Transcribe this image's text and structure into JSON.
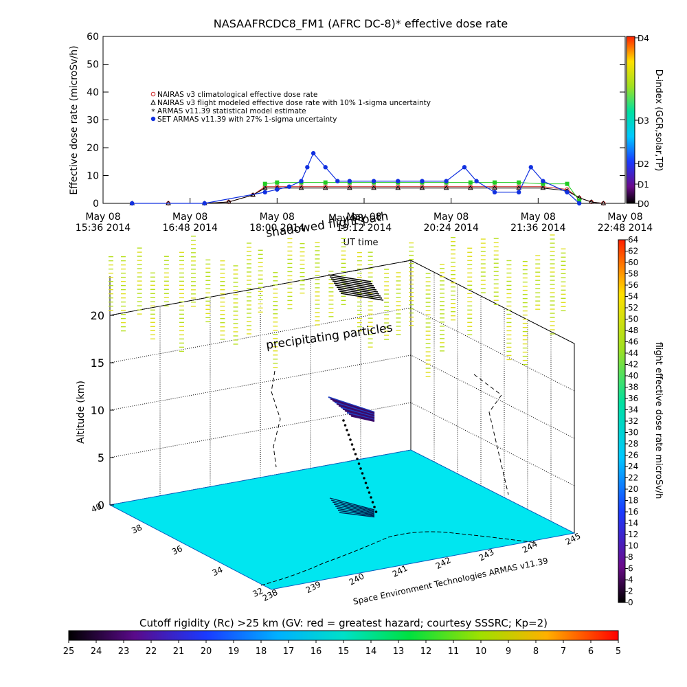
{
  "top_chart": {
    "title": "NASAAFRCDC8_FM1 (AFRC DC-8)* effective dose rate",
    "ylabel": "Effective dose rate (microSv/h)",
    "xlabel": "UT time",
    "yticks": [
      "0",
      "10",
      "20",
      "30",
      "40",
      "50",
      "60"
    ],
    "xticks": [
      {
        "line1": "May 08",
        "line2": "15:36 2014"
      },
      {
        "line1": "May 08",
        "line2": "16:48 2014"
      },
      {
        "line1": "May 08",
        "line2": "18:00 2014"
      },
      {
        "line1": "May 08",
        "line2": "19:12 2014"
      },
      {
        "line1": "May 08",
        "line2": "20:24 2014"
      },
      {
        "line1": "May 08",
        "line2": "21:36 2014"
      },
      {
        "line1": "May 08",
        "line2": "22:48 2014"
      }
    ],
    "legend": [
      {
        "label": "NAIRAS v3 climatological effective dose rate",
        "color": "#cc2222",
        "marker": "o"
      },
      {
        "label": "NAIRAS v3 flight modeled effective dose rate with 10% 1-sigma uncertainty",
        "color": "#000000",
        "marker": "triangle"
      },
      {
        "label": "ARMAS v11.39 statistical model estimate",
        "color": "#22cc22",
        "marker": "*"
      },
      {
        "label": "SET ARMAS v11.39 with 27% 1-sigma uncertainty",
        "color": "#1030e0",
        "marker": "dot"
      }
    ],
    "overlay_text_1": "shadowed flight path",
    "overlay_text_2": "May 08"
  },
  "dindex_bar": {
    "label": "D-index (GCR,solar,TP)",
    "ticks": [
      "D0",
      "D1",
      "D2",
      "D3",
      "D4"
    ]
  },
  "dose_bar": {
    "label": "flight effective dose rate microSv/h",
    "ticks": [
      "0",
      "2",
      "4",
      "6",
      "8",
      "10",
      "12",
      "14",
      "16",
      "18",
      "20",
      "22",
      "24",
      "26",
      "28",
      "30",
      "32",
      "34",
      "36",
      "38",
      "40",
      "42",
      "44",
      "46",
      "48",
      "50",
      "52",
      "54",
      "56",
      "58",
      "60",
      "62",
      "64"
    ]
  },
  "plot3d": {
    "zlabel": "Altitude (km)",
    "zticks": [
      "0",
      "5",
      "10",
      "15",
      "20"
    ],
    "lat_ticks": [
      "40",
      "38",
      "36",
      "34",
      "32"
    ],
    "lon_ticks": [
      "238",
      "239",
      "240",
      "241",
      "242",
      "243",
      "244",
      "245"
    ],
    "annotation": "precipitating particles",
    "credit": "Space Environment Technologies ARMAS v11.39"
  },
  "rc_bar": {
    "label": "Cutoff rigidity (Rc) >25 km (GV: red = greatest hazard; courtesy SSSRC; Kp=2)",
    "ticks": [
      "25",
      "24",
      "23",
      "22",
      "21",
      "20",
      "19",
      "18",
      "17",
      "16",
      "15",
      "14",
      "13",
      "12",
      "11",
      "10",
      "9",
      "8",
      "7",
      "6",
      "5"
    ]
  },
  "chart_data": {
    "type": "scatter",
    "title": "NASAAFRCDC8_FM1 (AFRC DC-8)* effective dose rate",
    "xlabel": "UT time",
    "ylabel": "Effective dose rate (microSv/h)",
    "x_unit": "UT time, May 08 2014",
    "xlim": [
      "15:36",
      "22:48"
    ],
    "ylim": [
      0,
      60
    ],
    "legend_position": "upper-left",
    "series": [
      {
        "name": "NAIRAS v3 climatological effective dose rate",
        "color": "#cc2222",
        "x": [
          "16:00",
          "16:30",
          "17:00",
          "17:20",
          "17:40",
          "17:50",
          "18:00",
          "18:20",
          "18:40",
          "19:00",
          "19:20",
          "19:40",
          "20:00",
          "20:20",
          "20:40",
          "21:00",
          "21:20",
          "21:40",
          "22:00",
          "22:10",
          "22:20",
          "22:30"
        ],
        "y": [
          0,
          0,
          0,
          0.5,
          3,
          6,
          6,
          6,
          6,
          6,
          6,
          6,
          6,
          6,
          6,
          6,
          6,
          6,
          5,
          2,
          0.5,
          0
        ]
      },
      {
        "name": "NAIRAS v3 flight modeled effective dose rate with 10% 1-sigma uncertainty",
        "color": "#000000",
        "x": [
          "16:00",
          "16:30",
          "17:00",
          "17:20",
          "17:40",
          "17:50",
          "18:00",
          "18:20",
          "18:40",
          "19:00",
          "19:20",
          "19:40",
          "20:00",
          "20:20",
          "20:40",
          "21:00",
          "21:20",
          "21:40",
          "22:00",
          "22:10",
          "22:20",
          "22:30"
        ],
        "y": [
          0,
          0,
          0,
          0.5,
          3,
          5.5,
          5.5,
          5.5,
          5.5,
          5.5,
          5.5,
          5.5,
          5.5,
          5.5,
          5.5,
          5.5,
          5.5,
          5.5,
          4.5,
          2,
          0.5,
          0
        ]
      },
      {
        "name": "ARMAS v11.39 statistical model estimate",
        "color": "#22cc22",
        "x": [
          "17:50",
          "18:00",
          "18:20",
          "18:40",
          "19:00",
          "19:20",
          "19:40",
          "20:00",
          "20:20",
          "20:40",
          "21:00",
          "21:20",
          "21:40",
          "22:00",
          "22:10"
        ],
        "y": [
          7,
          7.5,
          7.5,
          7.5,
          7.5,
          7.5,
          7.5,
          7.5,
          7.5,
          7.5,
          7.5,
          7.5,
          7,
          7,
          1
        ]
      },
      {
        "name": "SET ARMAS v11.39 with 27% 1-sigma uncertainty",
        "color": "#1030e0",
        "x": [
          "16:00",
          "17:00",
          "17:50",
          "18:00",
          "18:10",
          "18:20",
          "18:25",
          "18:30",
          "18:40",
          "18:50",
          "19:00",
          "19:20",
          "19:40",
          "20:00",
          "20:20",
          "20:35",
          "20:45",
          "21:00",
          "21:20",
          "21:30",
          "21:40",
          "22:00",
          "22:10"
        ],
        "y": [
          0,
          0,
          4,
          5,
          6,
          8,
          13,
          18,
          13,
          8,
          8,
          8,
          8,
          8,
          8,
          13,
          8,
          4,
          4,
          13,
          8,
          4,
          0
        ]
      }
    ]
  }
}
